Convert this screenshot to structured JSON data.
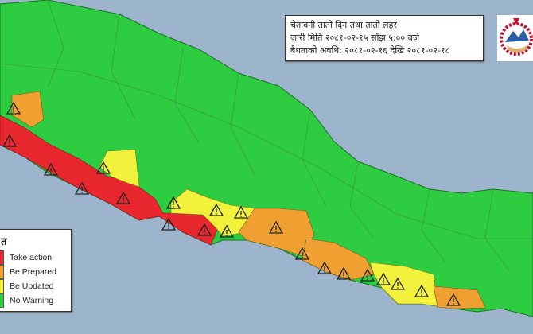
{
  "info_box": {
    "line1": "चेतावनी तातो दिन तथा तातो लहर",
    "line2": "जारी मिति २०८१-०२-१५ साँझ ५:०० बजे",
    "line3": "बैधताको अवधि: २०८१-०२-१६ देखि २०८१-०२-१८"
  },
  "emblem": {
    "icon": "nepal-government-emblem"
  },
  "legend": {
    "title": "त",
    "items": [
      {
        "label": "Take action",
        "color": "#e8262e"
      },
      {
        "label": "Be Prepared",
        "color": "#f0a030"
      },
      {
        "label": "Be Updated",
        "color": "#f2f23c"
      },
      {
        "label": "No Warning",
        "color": "#2ecc40"
      }
    ]
  },
  "colors": {
    "sea": "#9db5cc",
    "border": "#2a6a2a",
    "warning_icon": "warning-triangle-icon"
  }
}
